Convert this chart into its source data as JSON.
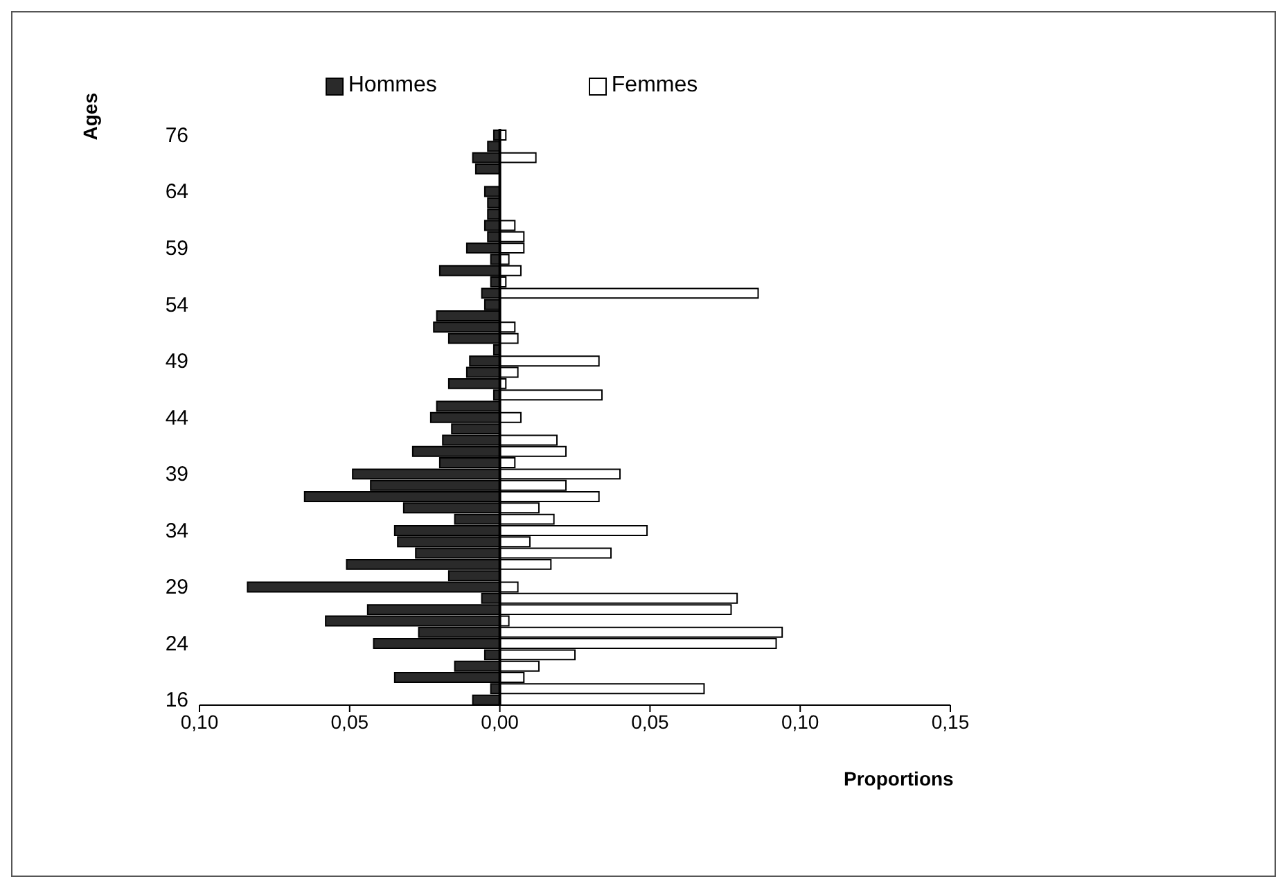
{
  "chart_data": {
    "type": "bar",
    "orientation": "horizontal",
    "stacked": true,
    "ylabel": "Ages",
    "xlabel": "Proportions",
    "categories": [
      "76",
      null,
      null,
      null,
      null,
      "64",
      null,
      null,
      null,
      null,
      "59",
      null,
      null,
      null,
      null,
      "54",
      null,
      null,
      null,
      null,
      "49",
      null,
      null,
      null,
      null,
      "44",
      null,
      null,
      null,
      null,
      "39",
      null,
      null,
      null,
      null,
      "34",
      null,
      null,
      null,
      null,
      "29",
      null,
      null,
      null,
      null,
      "24",
      null,
      null,
      null,
      null,
      "16"
    ],
    "series": [
      {
        "name": "Hommes",
        "color": "#2a2a2a",
        "values": [
          -0.002,
          -0.004,
          -0.009,
          -0.008,
          0,
          -0.005,
          -0.004,
          -0.004,
          -0.005,
          -0.004,
          -0.011,
          -0.003,
          -0.02,
          -0.003,
          -0.006,
          -0.005,
          -0.021,
          -0.022,
          -0.017,
          -0.002,
          -0.01,
          -0.011,
          -0.017,
          -0.002,
          -0.021,
          -0.023,
          -0.016,
          -0.019,
          -0.029,
          -0.02,
          -0.049,
          -0.043,
          -0.065,
          -0.032,
          -0.015,
          -0.035,
          -0.034,
          -0.028,
          -0.051,
          -0.017,
          -0.084,
          -0.006,
          -0.044,
          -0.058,
          -0.027,
          -0.042,
          -0.005,
          -0.015,
          -0.035,
          -0.003,
          -0.009
        ]
      },
      {
        "name": "Femmes",
        "color": "#ffffff",
        "values": [
          0.002,
          0,
          0.012,
          0,
          null,
          0,
          0,
          0,
          0.005,
          0.008,
          0.008,
          0.003,
          0.007,
          0.002,
          0.086,
          0,
          0,
          0.005,
          0.006,
          0,
          0.033,
          0.006,
          0.002,
          0.034,
          0,
          0.007,
          0,
          0.019,
          0.022,
          0.005,
          0.04,
          0.022,
          0.033,
          0.013,
          0.018,
          0.049,
          0.01,
          0.037,
          0.017,
          null,
          0.006,
          0.079,
          0.077,
          0.003,
          0.094,
          0.092,
          0.025,
          0.013,
          0.008,
          0.068,
          0
        ]
      }
    ],
    "xlim": [
      -0.1,
      0.15
    ],
    "xticks": [
      {
        "value": -0.1,
        "label": "0,10"
      },
      {
        "value": -0.05,
        "label": "0,05"
      },
      {
        "value": 0,
        "label": "0,00"
      },
      {
        "value": 0.05,
        "label": "0,05"
      },
      {
        "value": 0.1,
        "label": "0,10"
      },
      {
        "value": 0.15,
        "label": "0,15"
      }
    ],
    "legend": "top"
  }
}
